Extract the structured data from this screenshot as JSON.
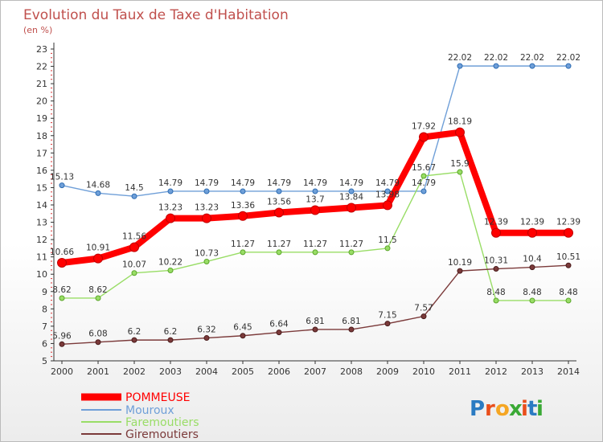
{
  "chart_data": {
    "type": "line",
    "title": "Evolution du Taux de Taxe d'Habitation",
    "subtitle": "(en %)",
    "x": [
      "2000",
      "2001",
      "2002",
      "2003",
      "2004",
      "2005",
      "2006",
      "2007",
      "2008",
      "2009",
      "2010",
      "2011",
      "2012",
      "2013",
      "2014"
    ],
    "ylim": [
      5,
      23
    ],
    "y_ticks": [
      "5",
      "6",
      "7",
      "8",
      "9",
      "10",
      "11",
      "12",
      "13",
      "14",
      "15",
      "16",
      "17",
      "18",
      "19",
      "20",
      "21",
      "22",
      "23"
    ],
    "grid": false,
    "legend_position": "bottom-left",
    "series": [
      {
        "name": "POMMEUSE",
        "color": "#ff0000",
        "values": [
          10.66,
          10.91,
          11.56,
          13.23,
          13.23,
          13.36,
          13.56,
          13.7,
          13.84,
          13.98,
          17.92,
          18.19,
          12.39,
          12.39,
          12.39
        ],
        "labels": [
          "10.66",
          "10.91",
          "11.56",
          "13.23",
          "13.23",
          "13.36",
          "13.56",
          "13.7",
          "13.84",
          "13.98",
          "17.92",
          "18.19",
          "12.39",
          "12.39",
          "12.39"
        ]
      },
      {
        "name": "Mouroux",
        "color": "#6f9fd8",
        "values": [
          15.13,
          14.68,
          14.5,
          14.79,
          14.79,
          14.79,
          14.79,
          14.79,
          14.79,
          14.79,
          14.79,
          22.02,
          22.02,
          22.02,
          22.02
        ],
        "labels": [
          "15.13",
          "14.68",
          "14.5",
          "14.79",
          "14.79",
          "14.79",
          "14.79",
          "14.79",
          "14.79",
          "14.79",
          "14.79",
          "22.02",
          "22.02",
          "22.02",
          "22.02"
        ]
      },
      {
        "name": "Faremoutiers",
        "color": "#99dd66",
        "values": [
          8.62,
          8.62,
          10.07,
          10.22,
          10.73,
          11.27,
          11.27,
          11.27,
          11.27,
          11.5,
          15.67,
          15.9,
          8.48,
          8.48,
          8.48
        ],
        "labels": [
          "8.62",
          "8.62",
          "10.07",
          "10.22",
          "10.73",
          "11.27",
          "11.27",
          "11.27",
          "11.27",
          "11.5",
          "15.67",
          "15.9",
          "8.48",
          "8.48",
          "8.48"
        ]
      },
      {
        "name": "Giremoutiers",
        "color": "#7b3a3a",
        "values": [
          5.96,
          6.08,
          6.2,
          6.2,
          6.32,
          6.45,
          6.64,
          6.81,
          6.81,
          7.15,
          7.57,
          10.19,
          10.31,
          10.4,
          10.51
        ],
        "labels": [
          "5.96",
          "6.08",
          "6.2",
          "6.2",
          "6.32",
          "6.45",
          "6.64",
          "6.81",
          "6.81",
          "7.15",
          "7.57",
          "10.19",
          "10.31",
          "10.4",
          "10.51"
        ]
      }
    ]
  },
  "logo": {
    "text": "Proxiti"
  }
}
